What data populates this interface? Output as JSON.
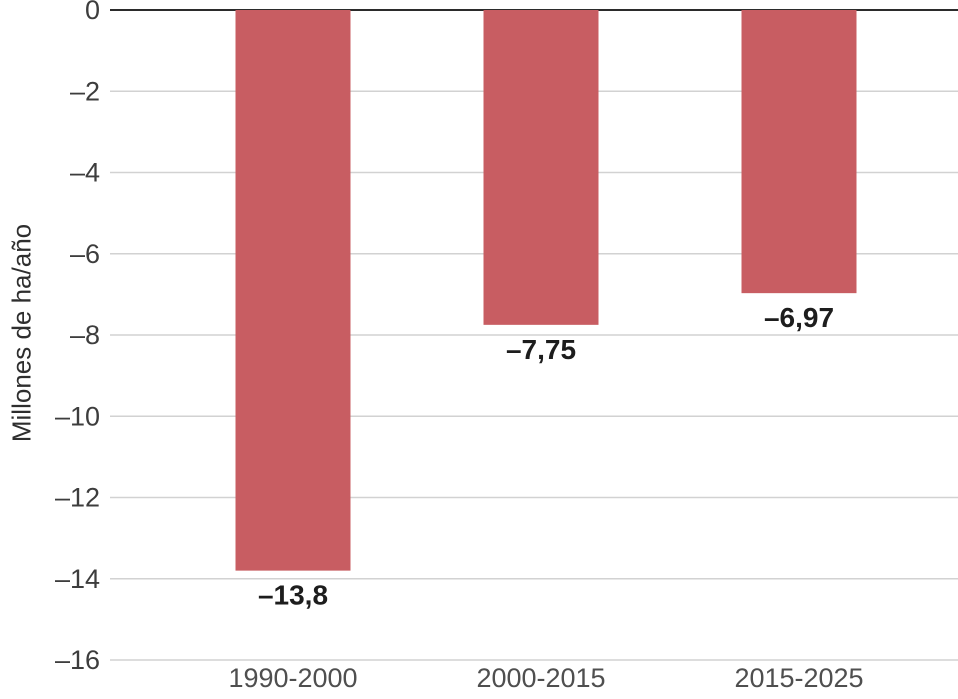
{
  "chart_data": {
    "type": "bar",
    "title": "",
    "xlabel": "",
    "ylabel": "Millones de ha/año",
    "categories": [
      "1990-2000",
      "2000-2015",
      "2015-2025"
    ],
    "values": [
      -13.8,
      -7.75,
      -6.97
    ],
    "value_labels": [
      "–13,8",
      "–7,75",
      "–6,97"
    ],
    "ylim": [
      -16,
      0
    ],
    "ytick_step": 2,
    "yticks": [
      0,
      -2,
      -4,
      -6,
      -8,
      -10,
      -12,
      -14,
      -16
    ],
    "ytick_labels": [
      "0",
      "–2",
      "–4",
      "–6",
      "–8",
      "–10",
      "–12",
      "–14",
      "–16"
    ],
    "grid": true,
    "legend_position": "none",
    "colors": {
      "bar": "#c85d62",
      "grid": "#d2d2d2",
      "zero_line": "#2b2b2b",
      "tick_label": "#3d3d3d",
      "category_label": "#4f4f4f",
      "value_label": "#1d1d1d",
      "axis_title": "#2e2e2e",
      "background": "#ffffff"
    }
  }
}
